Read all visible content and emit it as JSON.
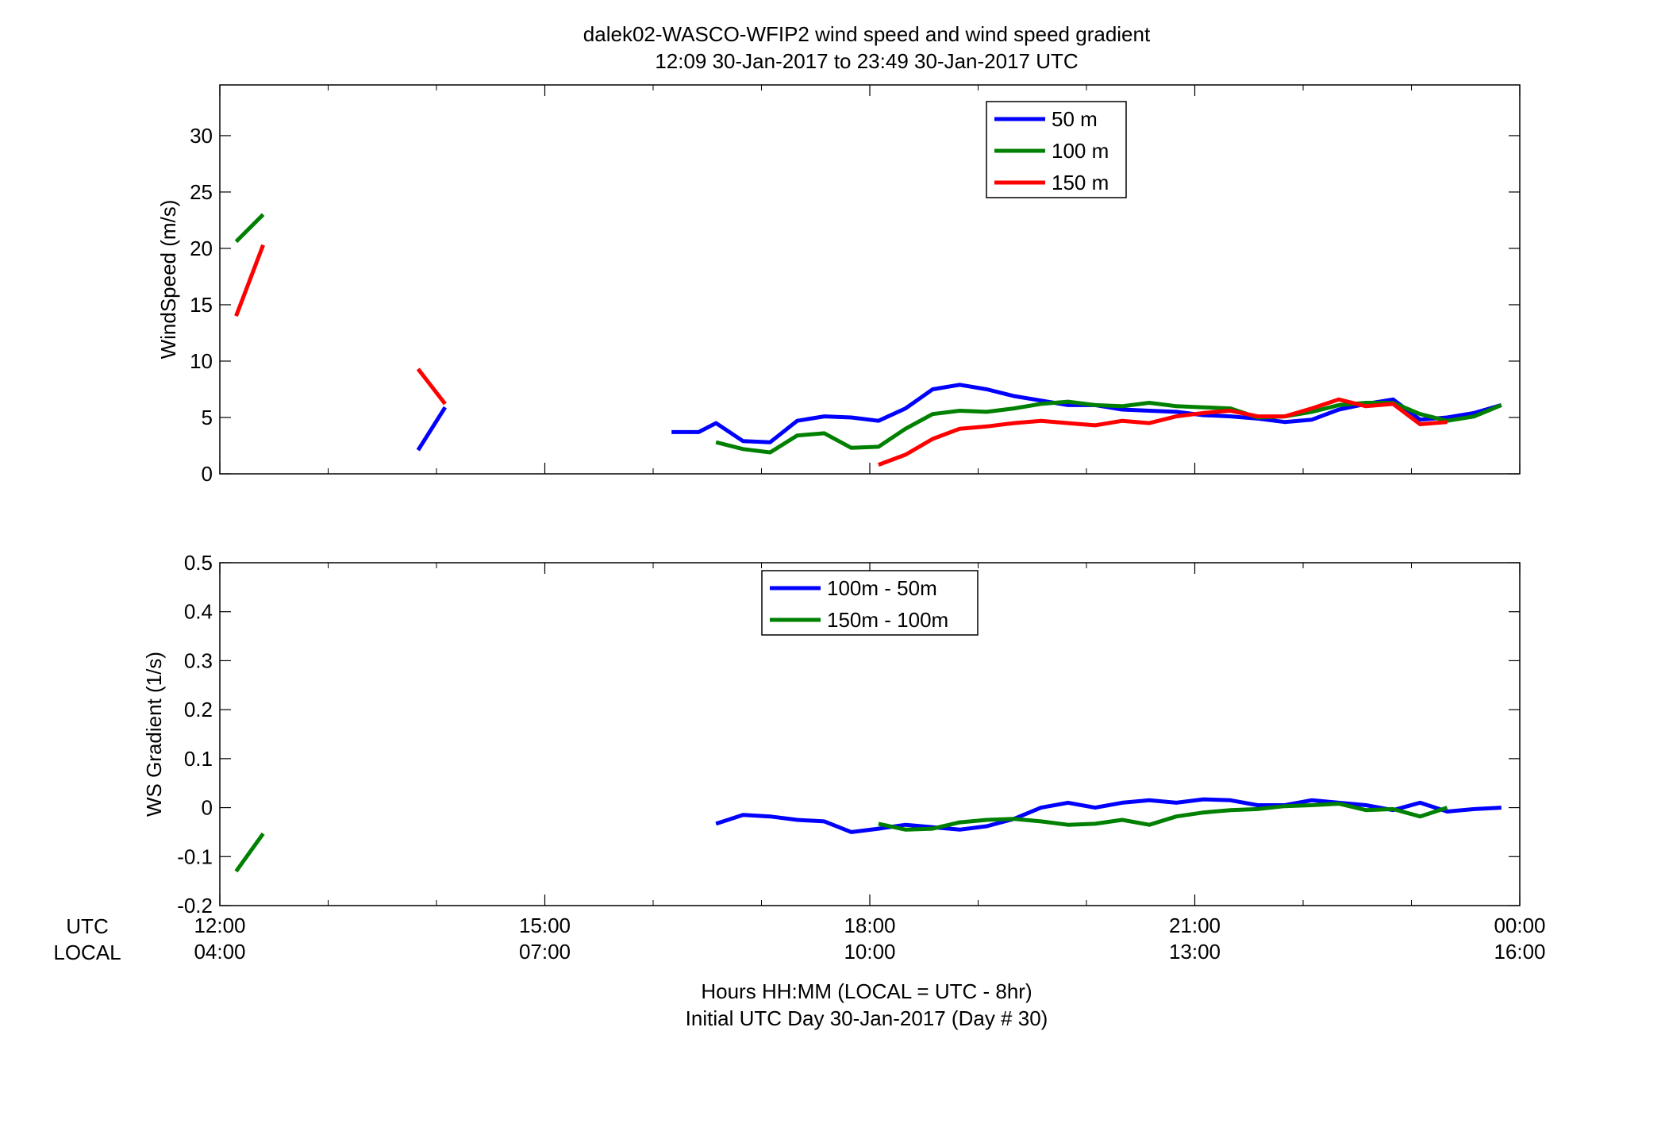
{
  "figure": {
    "title_line1": "dalek02-WASCO-WFIP2  wind speed and wind speed gradient",
    "title_line2": "12:09 30-Jan-2017 to 23:49 30-Jan-2017  UTC",
    "xlabel_line1": "Hours HH:MM  (LOCAL = UTC - 8hr)",
    "xlabel_line2": "Initial UTC Day 30-Jan-2017 (Day # 30)",
    "row_label_utc": "UTC",
    "row_label_local": "LOCAL",
    "xticks_utc": [
      "12:00",
      "15:00",
      "18:00",
      "21:00",
      "00:00"
    ],
    "xticks_local": [
      "04:00",
      "07:00",
      "10:00",
      "13:00",
      "16:00"
    ]
  },
  "chart_data": [
    {
      "type": "line",
      "title": "",
      "xlabel": "Hours HH:MM  (LOCAL = UTC - 8hr)",
      "ylabel": "WindSpeed (m/s)",
      "x_unit": "hours UTC on 30-Jan-2017",
      "xlim": [
        12,
        24
      ],
      "ylim": [
        0,
        34.5
      ],
      "yticks": [
        0,
        5,
        10,
        15,
        20,
        25,
        30
      ],
      "grid": false,
      "legend": "top-center",
      "series": [
        {
          "name": "50 m",
          "color": "#0000ff",
          "segments": [
            [
              [
                13.83,
                2.1
              ],
              [
                14.08,
                5.9
              ]
            ],
            [
              [
                16.17,
                3.7
              ],
              [
                16.42,
                3.7
              ],
              [
                16.58,
                4.5
              ],
              [
                16.83,
                2.9
              ],
              [
                17.08,
                2.8
              ],
              [
                17.33,
                4.7
              ],
              [
                17.58,
                5.1
              ],
              [
                17.83,
                5.0
              ],
              [
                18.08,
                4.7
              ],
              [
                18.33,
                5.8
              ],
              [
                18.58,
                7.5
              ],
              [
                18.83,
                7.9
              ],
              [
                19.08,
                7.5
              ],
              [
                19.33,
                6.9
              ],
              [
                19.58,
                6.5
              ],
              [
                19.83,
                6.1
              ],
              [
                20.08,
                6.1
              ],
              [
                20.33,
                5.7
              ],
              [
                20.58,
                5.6
              ],
              [
                20.83,
                5.5
              ],
              [
                21.08,
                5.2
              ],
              [
                21.33,
                5.1
              ],
              [
                21.58,
                4.9
              ],
              [
                21.83,
                4.6
              ],
              [
                22.08,
                4.8
              ],
              [
                22.33,
                5.7
              ],
              [
                22.58,
                6.2
              ],
              [
                22.83,
                6.6
              ],
              [
                23.08,
                4.8
              ],
              [
                23.33,
                5.0
              ],
              [
                23.58,
                5.4
              ],
              [
                23.83,
                6.1
              ]
            ]
          ]
        },
        {
          "name": "100 m",
          "color": "#008000",
          "segments": [
            [
              [
                12.15,
                20.6
              ],
              [
                12.4,
                23.0
              ]
            ],
            [
              [
                16.58,
                2.8
              ],
              [
                16.83,
                2.2
              ],
              [
                17.08,
                1.9
              ],
              [
                17.33,
                3.4
              ],
              [
                17.58,
                3.6
              ],
              [
                17.83,
                2.3
              ],
              [
                18.08,
                2.4
              ],
              [
                18.33,
                4.0
              ],
              [
                18.58,
                5.3
              ],
              [
                18.83,
                5.6
              ],
              [
                19.08,
                5.5
              ],
              [
                19.33,
                5.8
              ],
              [
                19.58,
                6.2
              ],
              [
                19.83,
                6.4
              ],
              [
                20.08,
                6.1
              ],
              [
                20.33,
                6.0
              ],
              [
                20.58,
                6.3
              ],
              [
                20.83,
                6.0
              ],
              [
                21.08,
                5.9
              ],
              [
                21.33,
                5.8
              ],
              [
                21.58,
                5.0
              ],
              [
                21.83,
                5.1
              ],
              [
                22.08,
                5.5
              ],
              [
                22.33,
                6.1
              ],
              [
                22.58,
                6.3
              ],
              [
                22.83,
                6.3
              ],
              [
                23.08,
                5.3
              ],
              [
                23.33,
                4.7
              ],
              [
                23.58,
                5.1
              ],
              [
                23.83,
                6.1
              ]
            ]
          ]
        },
        {
          "name": "150 m",
          "color": "#ff0000",
          "segments": [
            [
              [
                12.15,
                14.0
              ],
              [
                12.4,
                20.3
              ]
            ],
            [
              [
                13.83,
                9.3
              ],
              [
                14.08,
                6.2
              ]
            ],
            [
              [
                18.08,
                0.8
              ],
              [
                18.33,
                1.7
              ],
              [
                18.58,
                3.1
              ],
              [
                18.83,
                4.0
              ],
              [
                19.08,
                4.2
              ],
              [
                19.33,
                4.5
              ],
              [
                19.58,
                4.7
              ],
              [
                19.83,
                4.5
              ],
              [
                20.08,
                4.3
              ],
              [
                20.33,
                4.7
              ],
              [
                20.58,
                4.5
              ],
              [
                20.83,
                5.1
              ],
              [
                21.08,
                5.4
              ],
              [
                21.33,
                5.6
              ],
              [
                21.58,
                5.1
              ],
              [
                21.83,
                5.1
              ],
              [
                22.08,
                5.8
              ],
              [
                22.33,
                6.6
              ],
              [
                22.58,
                6.0
              ],
              [
                22.83,
                6.2
              ],
              [
                23.08,
                4.4
              ],
              [
                23.33,
                4.6
              ]
            ]
          ]
        }
      ]
    },
    {
      "type": "line",
      "title": "",
      "xlabel": "Hours HH:MM  (LOCAL = UTC - 8hr)",
      "ylabel": "WS Gradient (1/s)",
      "x_unit": "hours UTC on 30-Jan-2017",
      "xlim": [
        12,
        24
      ],
      "ylim": [
        -0.2,
        0.5
      ],
      "yticks": [
        -0.2,
        -0.1,
        0,
        0.1,
        0.2,
        0.3,
        0.4,
        0.5
      ],
      "yticklabels": [
        "-0.2",
        "-0.1",
        "0",
        "0.1",
        "0.2",
        "0.3",
        "0.4",
        "0.5"
      ],
      "grid": false,
      "legend": "top-center",
      "series": [
        {
          "name": "100m - 50m",
          "color": "#0000ff",
          "segments": [
            [
              [
                16.58,
                -0.033
              ],
              [
                16.83,
                -0.015
              ],
              [
                17.08,
                -0.018
              ],
              [
                17.33,
                -0.025
              ],
              [
                17.58,
                -0.028
              ],
              [
                17.83,
                -0.05
              ],
              [
                18.08,
                -0.043
              ],
              [
                18.33,
                -0.035
              ],
              [
                18.58,
                -0.04
              ],
              [
                18.83,
                -0.045
              ],
              [
                19.08,
                -0.038
              ],
              [
                19.33,
                -0.023
              ],
              [
                19.58,
                0.0
              ],
              [
                19.83,
                0.01
              ],
              [
                20.08,
                0.0
              ],
              [
                20.33,
                0.01
              ],
              [
                20.58,
                0.015
              ],
              [
                20.83,
                0.01
              ],
              [
                21.08,
                0.017
              ],
              [
                21.33,
                0.015
              ],
              [
                21.58,
                0.005
              ],
              [
                21.83,
                0.005
              ],
              [
                22.08,
                0.015
              ],
              [
                22.33,
                0.01
              ],
              [
                22.58,
                0.005
              ],
              [
                22.83,
                -0.005
              ],
              [
                23.08,
                0.01
              ],
              [
                23.33,
                -0.008
              ],
              [
                23.58,
                -0.003
              ],
              [
                23.83,
                0.0
              ]
            ]
          ]
        },
        {
          "name": "150m - 100m",
          "color": "#008000",
          "segments": [
            [
              [
                12.15,
                -0.13
              ],
              [
                12.4,
                -0.053
              ]
            ],
            [
              [
                18.08,
                -0.033
              ],
              [
                18.33,
                -0.045
              ],
              [
                18.58,
                -0.043
              ],
              [
                18.83,
                -0.03
              ],
              [
                19.08,
                -0.025
              ],
              [
                19.33,
                -0.023
              ],
              [
                19.58,
                -0.028
              ],
              [
                19.83,
                -0.035
              ],
              [
                20.08,
                -0.033
              ],
              [
                20.33,
                -0.025
              ],
              [
                20.58,
                -0.035
              ],
              [
                20.83,
                -0.018
              ],
              [
                21.08,
                -0.01
              ],
              [
                21.33,
                -0.005
              ],
              [
                21.58,
                -0.003
              ],
              [
                21.83,
                0.003
              ],
              [
                22.08,
                0.005
              ],
              [
                22.33,
                0.008
              ],
              [
                22.58,
                -0.005
              ],
              [
                22.83,
                -0.003
              ],
              [
                23.08,
                -0.018
              ],
              [
                23.33,
                0.0
              ]
            ]
          ]
        }
      ]
    }
  ]
}
